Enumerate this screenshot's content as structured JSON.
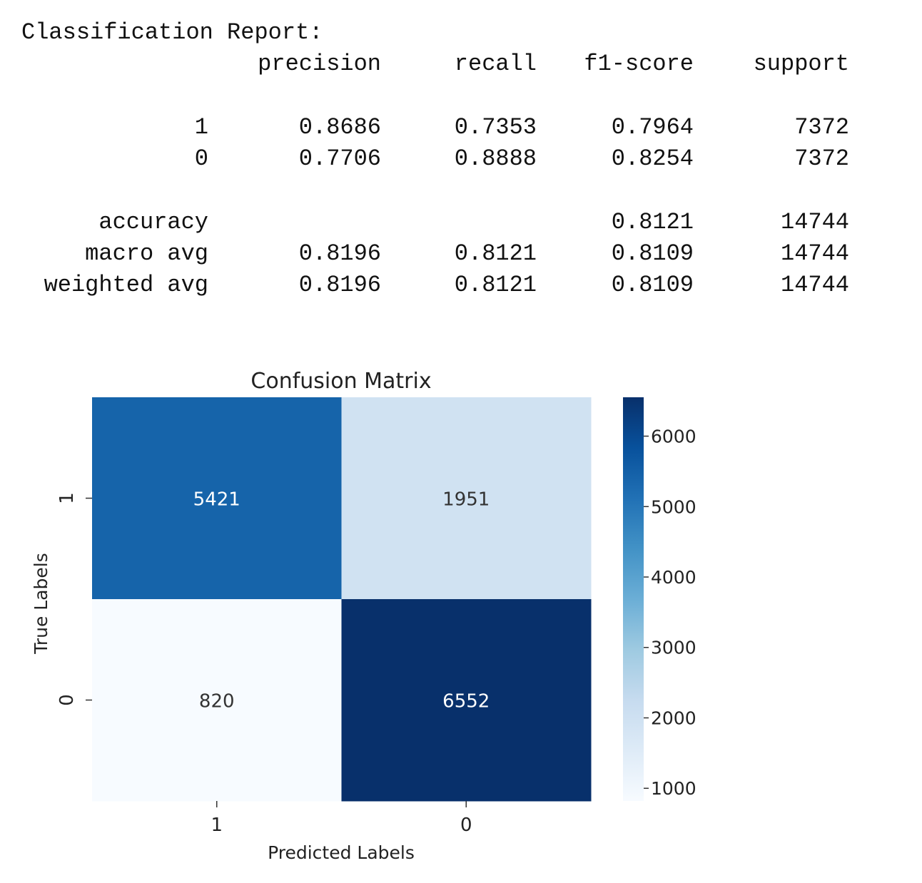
{
  "report": {
    "title": "Classification Report:",
    "headers": [
      "precision",
      "recall",
      "f1-score",
      "support"
    ],
    "rows": [
      {
        "label": "1",
        "precision": "0.8686",
        "recall": "0.7353",
        "f1": "0.7964",
        "support": "7372"
      },
      {
        "label": "0",
        "precision": "0.7706",
        "recall": "0.8888",
        "f1": "0.8254",
        "support": "7372"
      },
      {
        "label": "accuracy",
        "precision": "",
        "recall": "",
        "f1": "0.8121",
        "support": "14744"
      },
      {
        "label": "macro avg",
        "precision": "0.8196",
        "recall": "0.8121",
        "f1": "0.8109",
        "support": "14744"
      },
      {
        "label": "weighted avg",
        "precision": "0.8196",
        "recall": "0.8121",
        "f1": "0.8109",
        "support": "14744"
      }
    ]
  },
  "chart_data": {
    "type": "heatmap",
    "title": "Confusion Matrix",
    "xlabel": "Predicted Labels",
    "ylabel": "True Labels",
    "x_categories": [
      "1",
      "0"
    ],
    "y_categories": [
      "1",
      "0"
    ],
    "values": [
      [
        5421,
        1951
      ],
      [
        820,
        6552
      ]
    ],
    "colormap": "Blues",
    "colorbar": {
      "range": [
        820,
        6552
      ],
      "ticks": [
        1000,
        2000,
        3000,
        4000,
        5000,
        6000
      ],
      "tick_labels": [
        "1000",
        "2000",
        "3000",
        "4000",
        "5000",
        "6000"
      ]
    },
    "legend": "colorbar-right"
  }
}
